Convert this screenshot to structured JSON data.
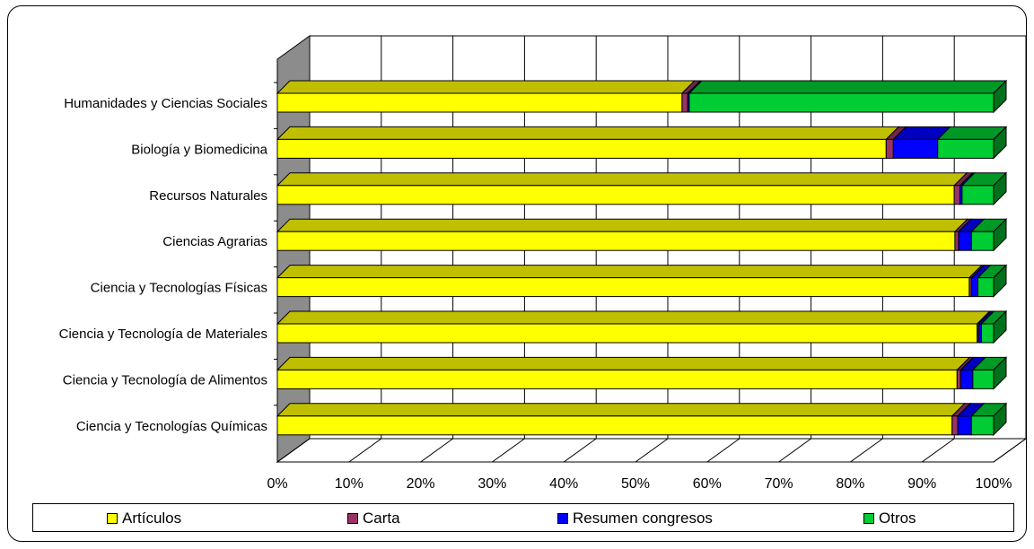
{
  "chart_data": {
    "type": "bar",
    "orientation": "horizontal",
    "stacked": "percent",
    "style": "3d",
    "categories": [
      "Humanidades y Ciencias Sociales",
      "Biología y Biomedicina",
      "Recursos Naturales",
      "Ciencias Agrarias",
      "Ciencia y Tecnologías Físicas",
      "Ciencia y Tecnología de Materiales",
      "Ciencia y Tecnología de Alimentos",
      "Ciencia y Tecnologías Químicas"
    ],
    "series": [
      {
        "name": "Artículos",
        "color": "#FFFF00",
        "values": [
          56.5,
          85,
          94.5,
          94.6,
          96.6,
          97.7,
          94.9,
          94.2
        ]
      },
      {
        "name": "Carta",
        "color": "#993366",
        "values": [
          0.8,
          1,
          0.8,
          0.5,
          0.3,
          0.2,
          0.5,
          0.8
        ]
      },
      {
        "name": "Resumen congresos",
        "color": "#0000FF",
        "values": [
          0.2,
          6.2,
          0.3,
          1.8,
          0.9,
          0.4,
          1.7,
          1.9
        ]
      },
      {
        "name": "Otros",
        "color": "#00CC33",
        "values": [
          42.5,
          7.8,
          4.4,
          3.1,
          2.2,
          1.7,
          2.9,
          3.1
        ]
      }
    ],
    "xlim": [
      0,
      100
    ],
    "x_ticks": [
      "0%",
      "10%",
      "20%",
      "30%",
      "40%",
      "50%",
      "60%",
      "70%",
      "80%",
      "90%",
      "100%"
    ],
    "grid": true,
    "legend_position": "bottom"
  }
}
